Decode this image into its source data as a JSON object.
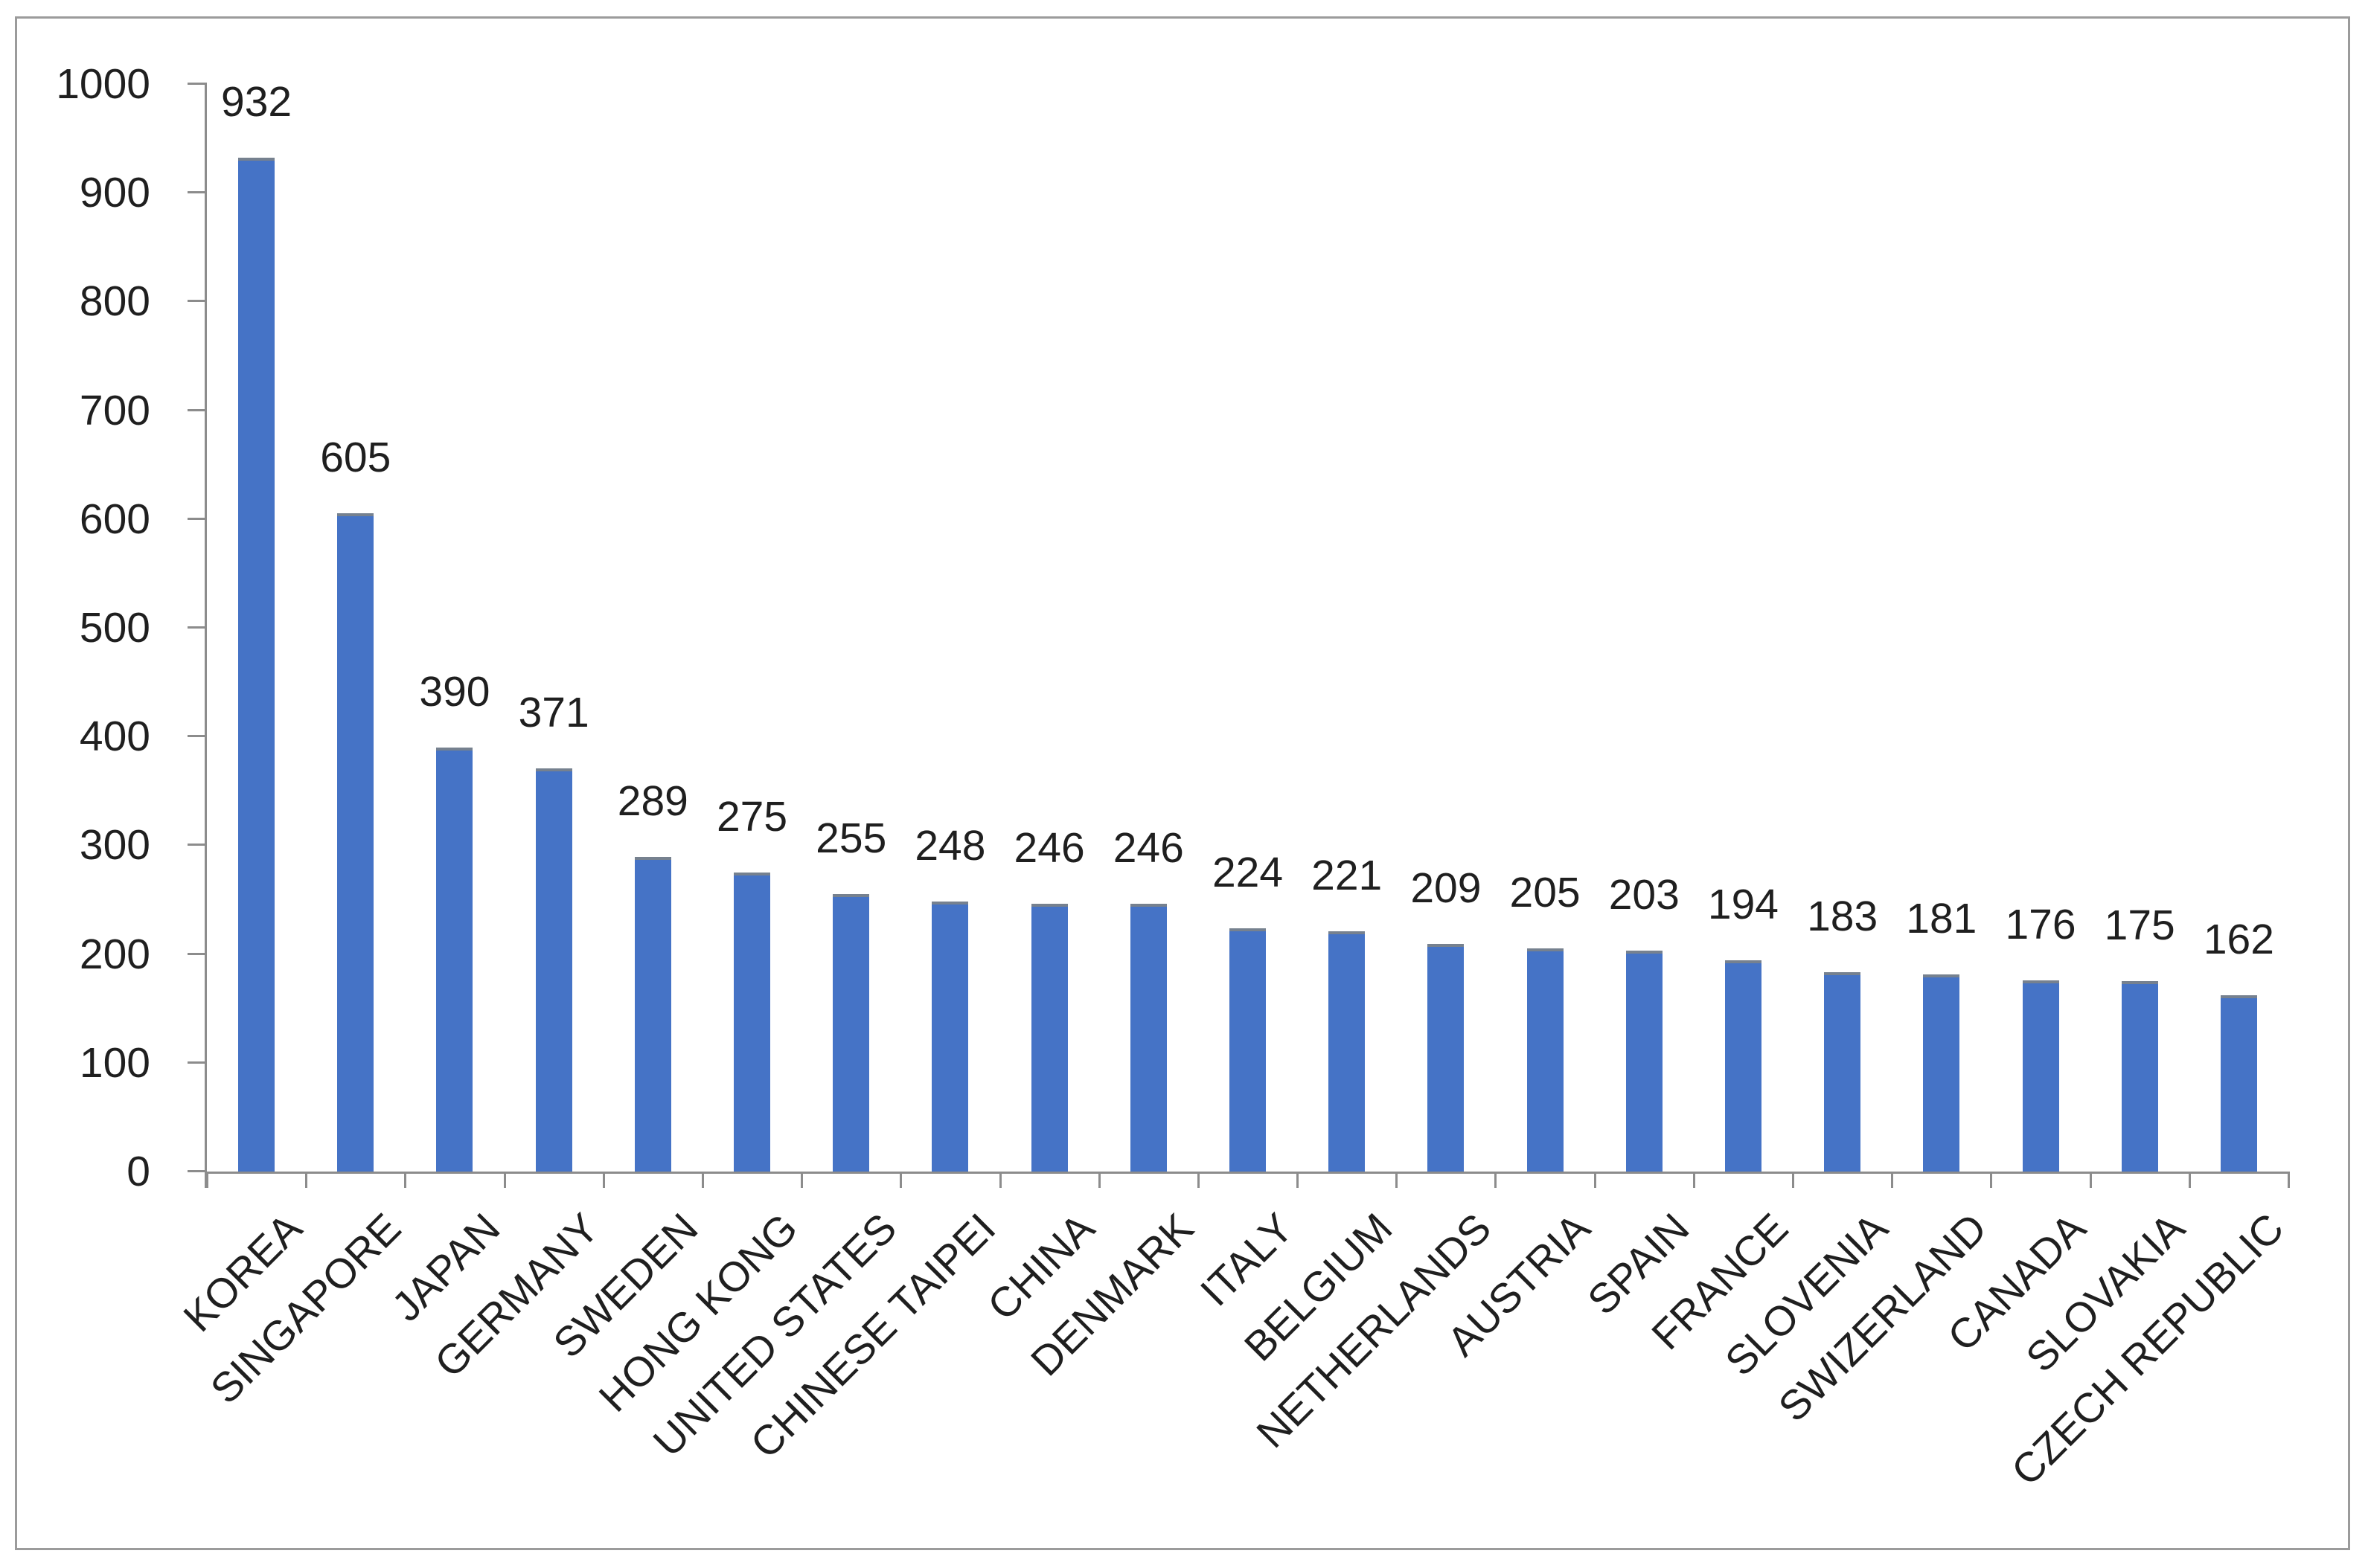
{
  "chart_data": {
    "type": "bar",
    "categories": [
      "KOREA",
      "SINGAPORE",
      "JAPAN",
      "GERMANY",
      "SWEDEN",
      "HONG KONG",
      "UNITED STATES",
      "CHINESE TAIPEI",
      "CHINA",
      "DENMARK",
      "ITALY",
      "BELGIUM",
      "NETHERLANDS",
      "AUSTRIA",
      "SPAIN",
      "FRANCE",
      "SLOVENIA",
      "SWIZERLAND",
      "CANADA",
      "SLOVAKIA",
      "CZECH REPUBLIC"
    ],
    "values": [
      932,
      605,
      390,
      371,
      289,
      275,
      255,
      248,
      246,
      246,
      224,
      221,
      209,
      205,
      203,
      194,
      183,
      181,
      176,
      175,
      162
    ],
    "data_labels": [
      932,
      605,
      390,
      371,
      289,
      275,
      255,
      248,
      246,
      246,
      224,
      221,
      209,
      205,
      203,
      194,
      183,
      181,
      176,
      175,
      162
    ],
    "title": "",
    "xlabel": "",
    "ylabel": "",
    "ylim": [
      0,
      1000
    ],
    "yticks": [
      0,
      100,
      200,
      300,
      400,
      500,
      600,
      700,
      800,
      900,
      1000
    ],
    "grid": false,
    "legend": false,
    "bar_color": "#4573c6",
    "bar_top_edge_color": "#76818f",
    "axis_color": "#8c8c8c",
    "text_color": "#1f1f1f",
    "frame_border_color": "#9b9b9b"
  }
}
